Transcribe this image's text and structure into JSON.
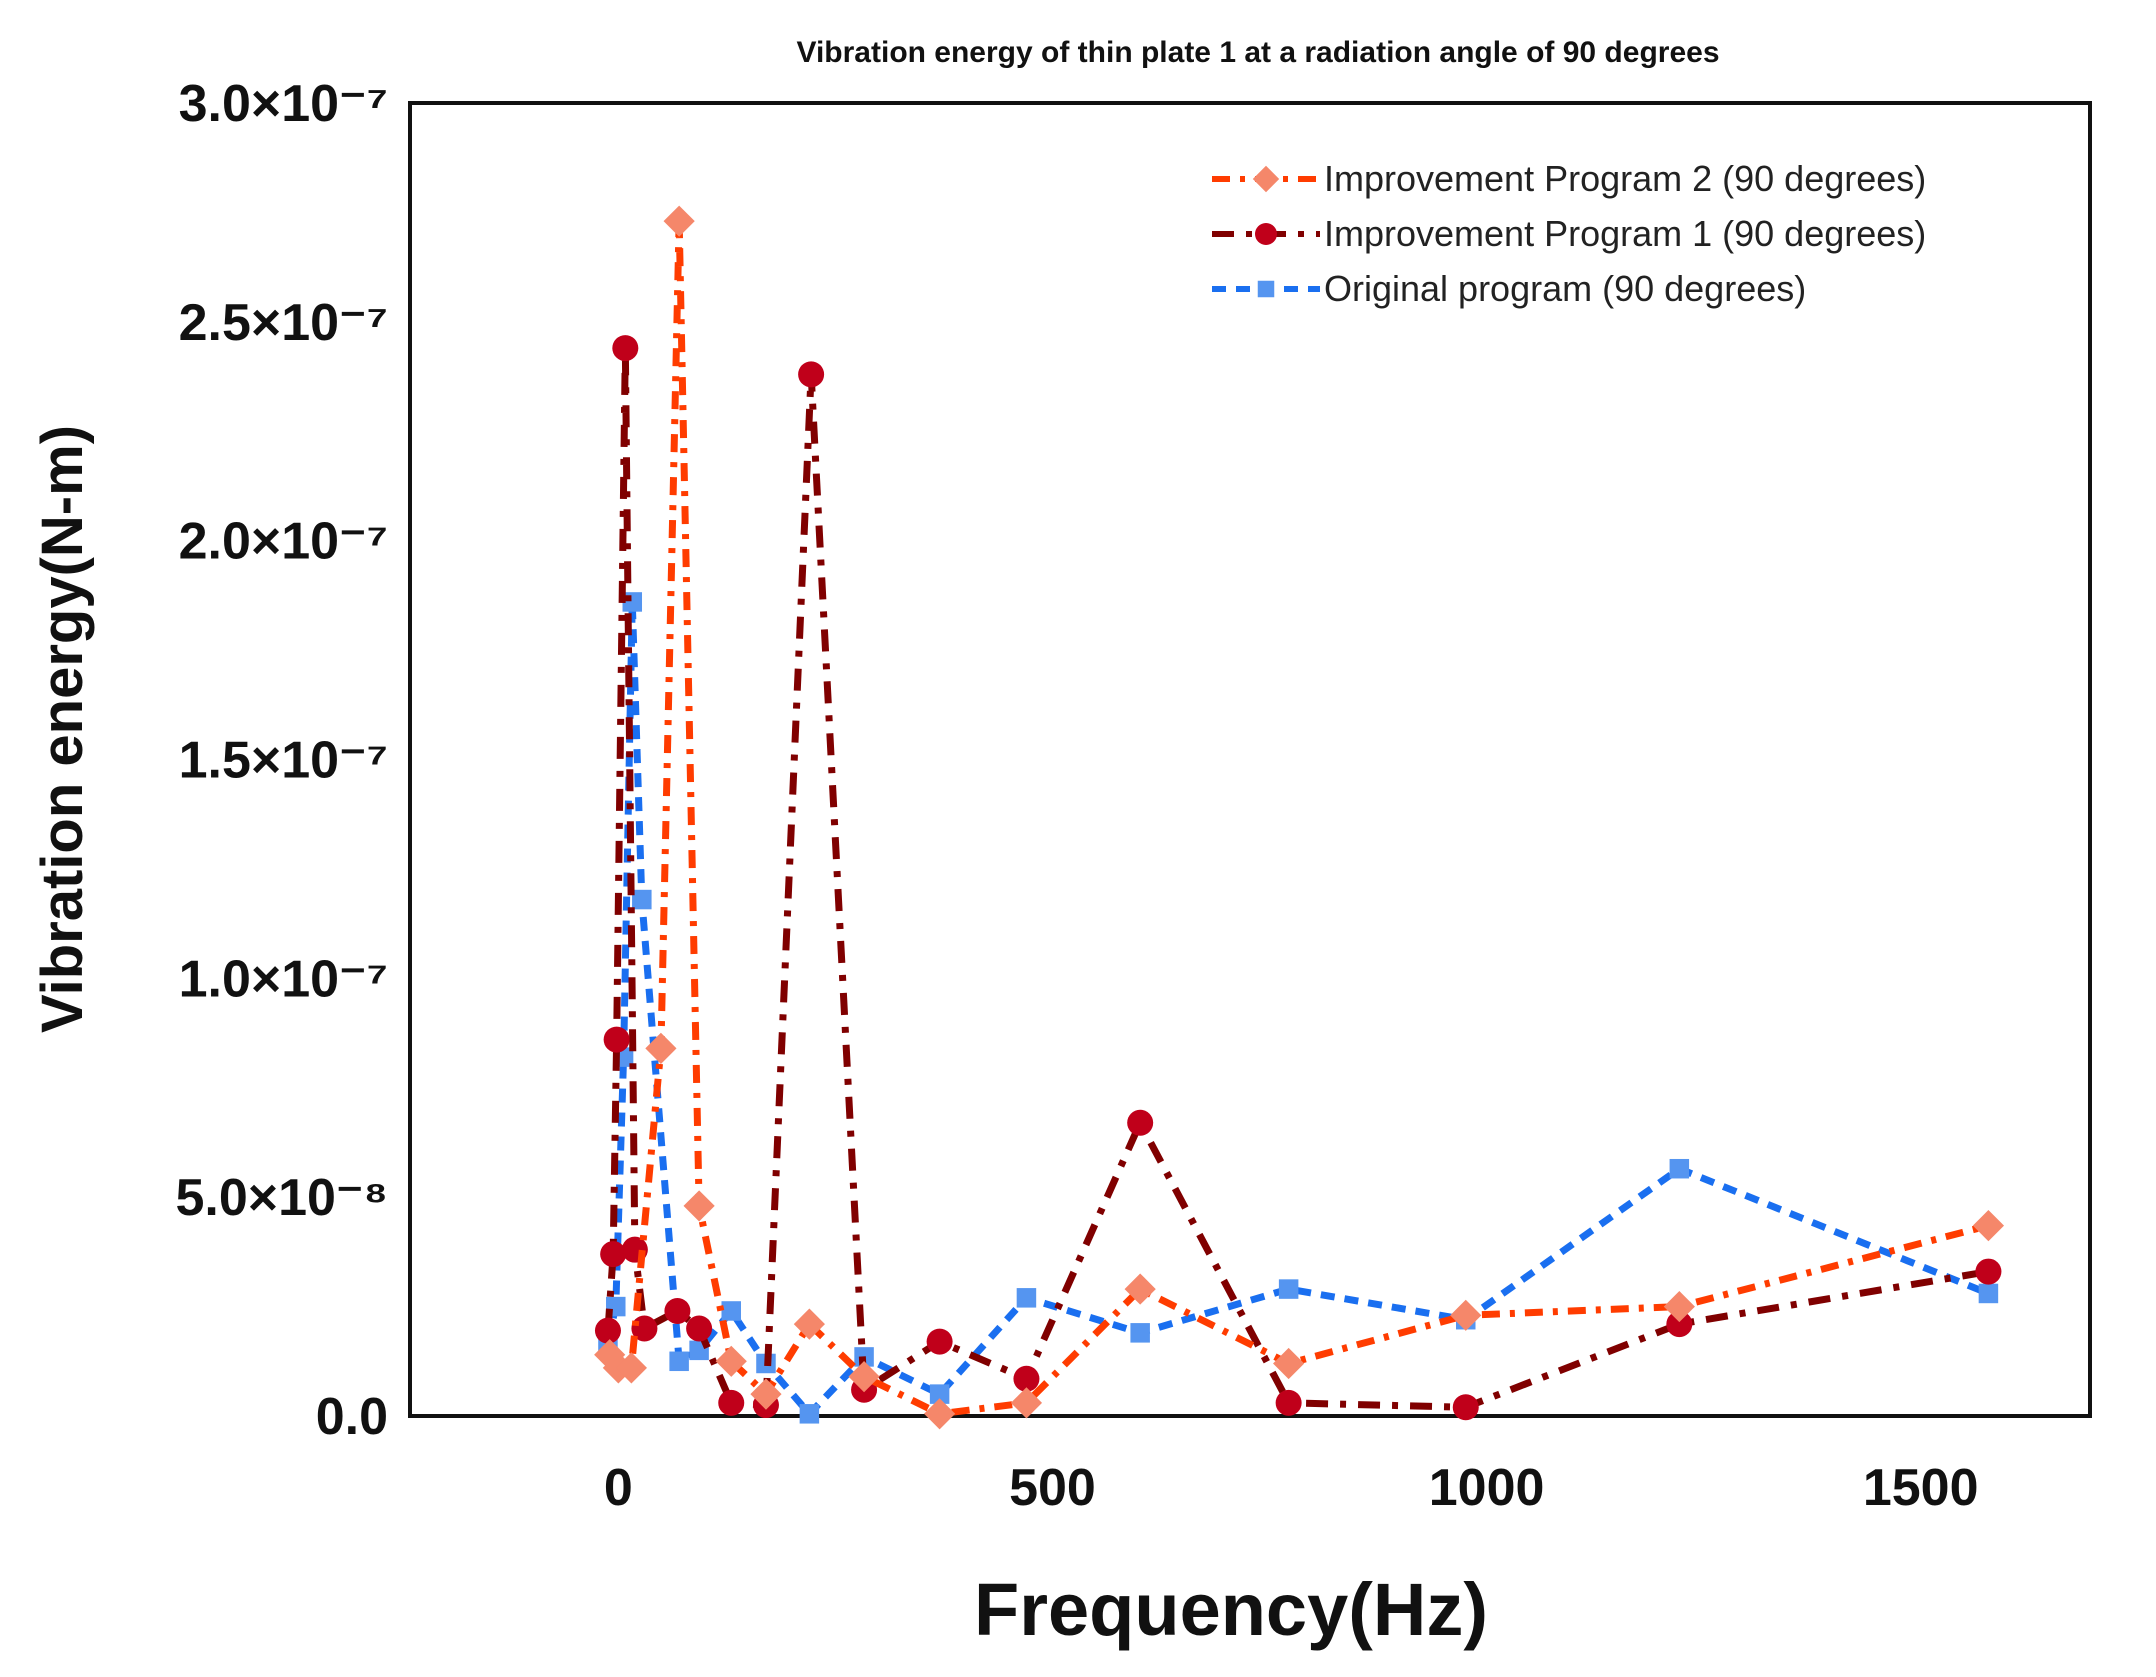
{
  "chart_data": {
    "type": "line",
    "title": "Vibration energy of thin plate 1 at a radiation angle of 90 degrees",
    "xlabel": "Frequency(Hz)",
    "ylabel": "Vibration energy(N-m)",
    "xlim": [
      -240,
      1695
    ],
    "ylim": [
      0,
      3e-07
    ],
    "xticks": [
      0,
      500,
      1000,
      1500
    ],
    "xtick_labels": [
      "0",
      "500",
      "1000",
      "1500"
    ],
    "yticks": [
      0,
      5e-08,
      1e-07,
      1.5e-07,
      2e-07,
      2.5e-07,
      3e-07
    ],
    "ytick_labels": [
      "0.0",
      "5.0×10⁻⁸",
      "1.0×10⁻⁷",
      "1.5×10⁻⁷",
      "2.0×10⁻⁷",
      "2.5×10⁻⁷",
      "3.0×10⁻⁷"
    ],
    "grid": false,
    "legend_position": "top-right",
    "series": [
      {
        "name": "Improvement Program 2 (90 degrees)",
        "line_color": "#ff3c00",
        "marker_color": "#f5876a",
        "marker": "diamond",
        "dash": "18,10,5,10",
        "x": [
          -10,
          0,
          15,
          49,
          70,
          93,
          130,
          170,
          220,
          283,
          370,
          470,
          601,
          772,
          976,
          1222,
          1578
        ],
        "y": [
          1.4e-08,
          1.1e-08,
          1.1e-08,
          8.4e-08,
          2.73e-07,
          4.8e-08,
          1.25e-08,
          5e-09,
          2.1e-08,
          9e-09,
          5e-10,
          3e-09,
          2.9e-08,
          1.2e-08,
          2.3e-08,
          2.5e-08,
          4.35e-08
        ]
      },
      {
        "name": "Improvement Program 1 (90 degrees)",
        "line_color": "#800000",
        "marker_color": "#c0001a",
        "marker": "circle",
        "dash": "22,12,6,12",
        "x": [
          -12,
          -6,
          -2,
          8,
          19,
          30,
          68,
          93,
          130,
          170,
          222,
          283,
          370,
          470,
          601,
          772,
          976,
          1222,
          1578
        ],
        "y": [
          1.95e-08,
          3.7e-08,
          8.6e-08,
          2.44e-07,
          3.8e-08,
          2e-08,
          2.4e-08,
          2e-08,
          3e-09,
          2.5e-09,
          2.38e-07,
          6e-09,
          1.7e-08,
          8.5e-09,
          6.7e-08,
          3e-09,
          2e-09,
          2.1e-08,
          3.3e-08
        ]
      },
      {
        "name": "Original program (90 degrees)",
        "line_color": "#1a6ff0",
        "marker_color": "#5595f0",
        "marker": "square",
        "dash": "14,10",
        "x": [
          -12,
          -3,
          6,
          16,
          27,
          70,
          93,
          130,
          170,
          220,
          283,
          370,
          470,
          601,
          772,
          976,
          1222,
          1578
        ],
        "y": [
          1.7e-08,
          2.5e-08,
          8.2e-08,
          1.86e-07,
          1.18e-07,
          1.25e-08,
          1.5e-08,
          2.4e-08,
          1.2e-08,
          5e-10,
          1.35e-08,
          5e-09,
          2.7e-08,
          1.9e-08,
          2.9e-08,
          2.2e-08,
          5.65e-08,
          2.8e-08
        ]
      }
    ]
  }
}
